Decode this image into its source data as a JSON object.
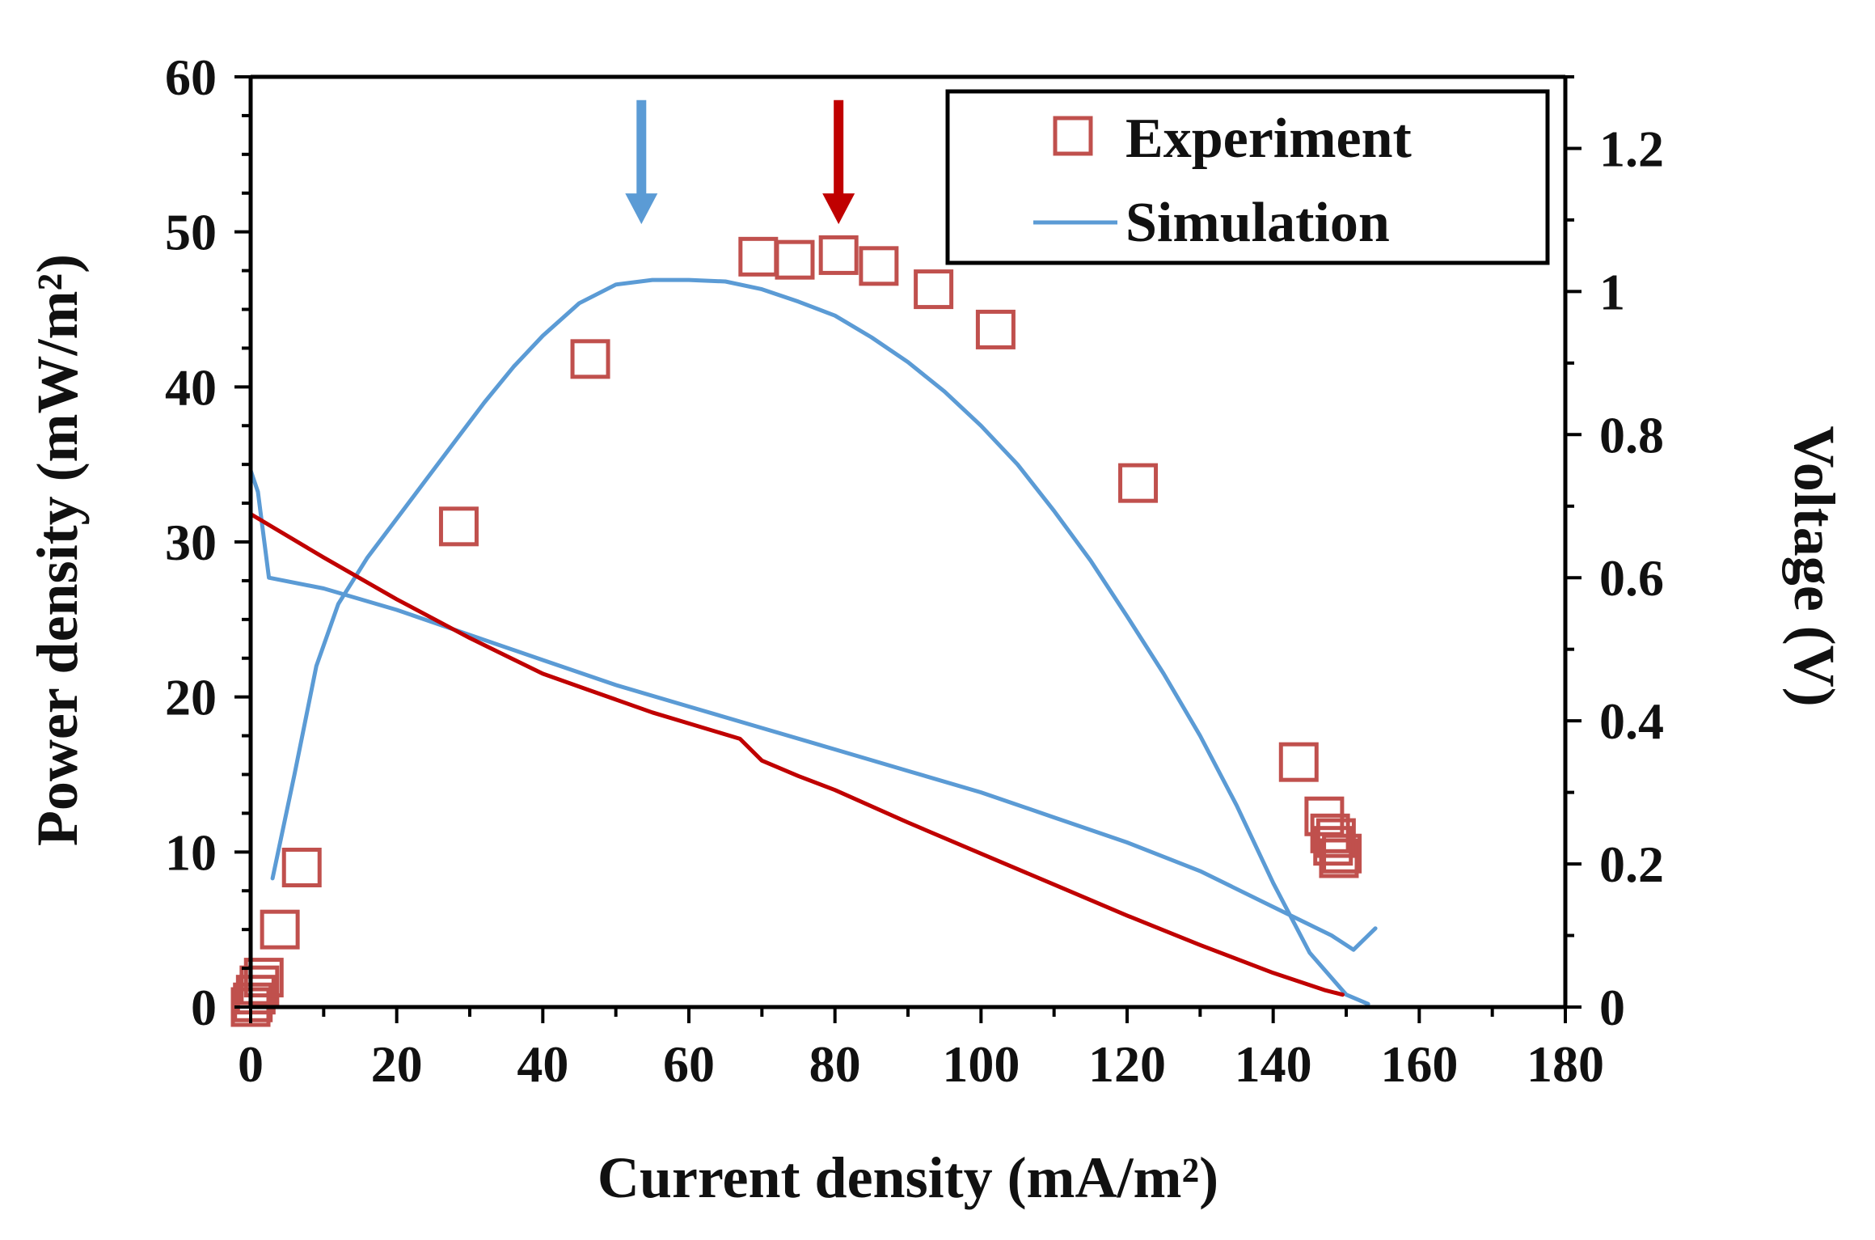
{
  "chart_data": {
    "type": "scatter",
    "title": "",
    "xlabel": "Current density (mA/m²)",
    "ylabel": "Power density (mW/m²)",
    "y2label": "Voltage (V)",
    "xlim": [
      0,
      180
    ],
    "ylim": [
      0,
      60
    ],
    "y2lim": [
      0,
      1.3
    ],
    "x_ticks": [
      0,
      20,
      40,
      60,
      80,
      100,
      120,
      140,
      160,
      180
    ],
    "y_ticks": [
      0,
      10,
      20,
      30,
      40,
      50,
      60
    ],
    "y2_ticks": [
      0,
      0.2,
      0.4,
      0.6,
      0.8,
      1,
      1.2
    ],
    "grid": false,
    "legend_position": "top-right",
    "legend": {
      "experiment": "Experiment",
      "simulation": "Simulation"
    },
    "colors": {
      "experiment": "#c0504d",
      "simulation": "#5b9bd5",
      "experiment_line": "#c00000",
      "blue_arrow": "#5b9bd5",
      "red_arrow": "#c00000",
      "axis": "#000000"
    },
    "series": [
      {
        "name": "Experiment",
        "kind": "markers",
        "axis": "left",
        "points": [
          [
            0,
            0
          ],
          [
            0.3,
            0.3
          ],
          [
            0.7,
            0.8
          ],
          [
            1.2,
            1.4
          ],
          [
            1.8,
            1.9
          ],
          [
            4,
            5
          ],
          [
            7,
            9
          ],
          [
            28.5,
            31
          ],
          [
            46.5,
            41.8
          ],
          [
            69.5,
            48.4
          ],
          [
            74.5,
            48.2
          ],
          [
            80.5,
            48.5
          ],
          [
            86,
            47.8
          ],
          [
            93.5,
            46.3
          ],
          [
            102,
            43.7
          ],
          [
            121.5,
            33.8
          ],
          [
            143.5,
            15.8
          ],
          [
            147,
            12.3
          ],
          [
            147.8,
            11.2
          ],
          [
            148.2,
            10.4
          ],
          [
            148.6,
            10.9
          ],
          [
            149,
            9.6
          ],
          [
            149.4,
            9.9
          ]
        ]
      },
      {
        "kind": "line",
        "axis": "left",
        "color": "simulation",
        "points": [
          [
            3,
            8.3
          ],
          [
            6,
            15
          ],
          [
            9,
            22
          ],
          [
            12,
            26
          ],
          [
            16,
            29
          ],
          [
            20,
            31.5
          ],
          [
            24,
            34
          ],
          [
            28,
            36.5
          ],
          [
            32,
            39
          ],
          [
            36,
            41.3
          ],
          [
            40,
            43.3
          ],
          [
            45,
            45.4
          ],
          [
            50,
            46.6
          ],
          [
            55,
            46.9
          ],
          [
            60,
            46.9
          ],
          [
            65,
            46.8
          ],
          [
            70,
            46.3
          ],
          [
            75,
            45.5
          ],
          [
            80,
            44.6
          ],
          [
            85,
            43.2
          ],
          [
            90,
            41.6
          ],
          [
            95,
            39.7
          ],
          [
            100,
            37.5
          ],
          [
            105,
            35
          ],
          [
            110,
            32
          ],
          [
            115,
            28.8
          ],
          [
            120,
            25.2
          ],
          [
            125,
            21.5
          ],
          [
            130,
            17.5
          ],
          [
            135,
            13
          ],
          [
            140,
            8
          ],
          [
            145,
            3.5
          ],
          [
            150,
            0.8
          ],
          [
            153,
            0.2
          ]
        ]
      },
      {
        "kind": "line",
        "axis": "right",
        "color": "simulation",
        "points": [
          [
            0,
            0.75
          ],
          [
            1,
            0.72
          ],
          [
            2.5,
            0.6
          ],
          [
            10,
            0.585
          ],
          [
            20,
            0.555
          ],
          [
            30,
            0.52
          ],
          [
            40,
            0.485
          ],
          [
            50,
            0.45
          ],
          [
            60,
            0.42
          ],
          [
            70,
            0.39
          ],
          [
            80,
            0.36
          ],
          [
            90,
            0.33
          ],
          [
            100,
            0.3
          ],
          [
            110,
            0.265
          ],
          [
            120,
            0.23
          ],
          [
            130,
            0.19
          ],
          [
            140,
            0.14
          ],
          [
            145,
            0.115
          ],
          [
            148,
            0.1
          ],
          [
            151,
            0.08
          ],
          [
            153,
            0.1
          ],
          [
            154,
            0.11
          ]
        ]
      },
      {
        "kind": "line",
        "axis": "left",
        "color": "experiment_line",
        "points": [
          [
            0,
            31.8
          ],
          [
            10,
            29
          ],
          [
            20,
            26.3
          ],
          [
            30,
            23.8
          ],
          [
            40,
            21.5
          ],
          [
            46,
            20.5
          ],
          [
            55,
            19
          ],
          [
            67,
            17.3
          ],
          [
            70,
            15.9
          ],
          [
            75,
            14.9
          ],
          [
            80,
            14
          ],
          [
            90,
            11.9
          ],
          [
            100,
            9.9
          ],
          [
            110,
            7.9
          ],
          [
            120,
            5.9
          ],
          [
            130,
            4
          ],
          [
            140,
            2.2
          ],
          [
            147,
            1.1
          ],
          [
            149.5,
            0.8
          ]
        ]
      }
    ],
    "annotations": [
      {
        "type": "arrow",
        "color": "blue_arrow",
        "x": 53.5,
        "y_from": 58.5,
        "y_to": 50.5
      },
      {
        "type": "arrow",
        "color": "red_arrow",
        "x": 80.5,
        "y_from": 58.5,
        "y_to": 50.5
      }
    ]
  }
}
